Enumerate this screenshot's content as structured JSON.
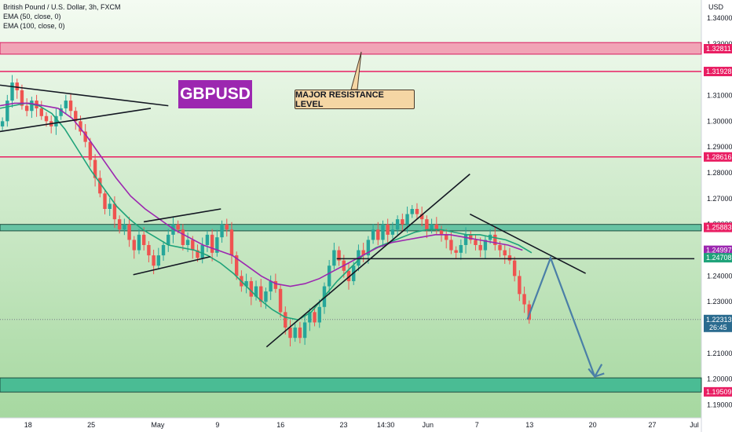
{
  "chart_data": {
    "type": "candlestick",
    "title": "British Pound / U.S. Dollar, 3h, FXCM",
    "indicators": [
      {
        "name": "EMA (50, close, 0)",
        "color": "#1fa37a"
      },
      {
        "name": "EMA (100, close, 0)",
        "color": "#9c27b0"
      }
    ],
    "symbol_badge": "GBPUSD",
    "annotation": "MAJOR RESISTANCE LEVEL",
    "y_axis": {
      "currency_label": "USD",
      "ylim": [
        1.185,
        1.347
      ],
      "ticks": [
        "1.34000",
        "1.33000",
        "1.32000",
        "1.31000",
        "1.30000",
        "1.29000",
        "1.28000",
        "1.27000",
        "1.26000",
        "1.25000",
        "1.24000",
        "1.23000",
        "1.22000",
        "1.21000",
        "1.20000",
        "1.19000"
      ]
    },
    "x_axis": {
      "ticks": [
        {
          "label": "18",
          "t": 0.04
        },
        {
          "label": "25",
          "t": 0.13
        },
        {
          "label": "May",
          "t": 0.225
        },
        {
          "label": "9",
          "t": 0.31
        },
        {
          "label": "16",
          "t": 0.4
        },
        {
          "label": "23",
          "t": 0.49
        },
        {
          "label": "14:30",
          "t": 0.55
        },
        {
          "label": "Jun",
          "t": 0.61
        },
        {
          "label": "7",
          "t": 0.68
        },
        {
          "label": "13",
          "t": 0.755
        },
        {
          "label": "20",
          "t": 0.845
        },
        {
          "label": "27",
          "t": 0.93
        },
        {
          "label": "Jul",
          "t": 0.99
        }
      ]
    },
    "price_labels": [
      {
        "value": "1.32811",
        "price": 1.32811,
        "kind": "red"
      },
      {
        "value": "1.31928",
        "price": 1.31928,
        "kind": "red"
      },
      {
        "value": "1.28616",
        "price": 1.28616,
        "kind": "red"
      },
      {
        "value": "1.25883",
        "price": 1.25883,
        "kind": "red"
      },
      {
        "value": "1.24997",
        "price": 1.24997,
        "kind": "purple"
      },
      {
        "value": "1.24708",
        "price": 1.24708,
        "kind": "green"
      },
      {
        "value": "1.22313",
        "price": 1.22313,
        "kind": "current"
      },
      {
        "value": "1.19509",
        "price": 1.19509,
        "kind": "red"
      }
    ],
    "countdown": "26:45",
    "zones": [
      {
        "from": 1.326,
        "to": 1.3305,
        "kind": "resistance"
      },
      {
        "from": 1.2575,
        "to": 1.26,
        "kind": "supply"
      },
      {
        "from": 1.195,
        "to": 1.2005,
        "kind": "demand"
      }
    ],
    "horizontal_levels": [
      1.31928,
      1.28616
    ],
    "close_series": [
      1.3,
      1.308,
      1.315,
      1.312,
      1.306,
      1.304,
      1.308,
      1.305,
      1.302,
      1.3,
      1.298,
      1.302,
      1.305,
      1.308,
      1.304,
      1.3,
      1.296,
      1.292,
      1.285,
      1.278,
      1.272,
      1.266,
      1.268,
      1.262,
      1.258,
      1.26,
      1.254,
      1.25,
      1.256,
      1.252,
      1.248,
      1.244,
      1.248,
      1.252,
      1.256,
      1.26,
      1.258,
      1.252,
      1.254,
      1.25,
      1.247,
      1.252,
      1.256,
      1.249,
      1.255,
      1.26,
      1.258,
      1.248,
      1.24,
      1.236,
      1.238,
      1.232,
      1.236,
      1.23,
      1.234,
      1.238,
      1.235,
      1.226,
      1.22,
      1.216,
      1.22,
      1.216,
      1.222,
      1.226,
      1.222,
      1.228,
      1.236,
      1.244,
      1.25,
      1.246,
      1.242,
      1.238,
      1.244,
      1.25,
      1.248,
      1.254,
      1.258,
      1.254,
      1.26,
      1.256,
      1.258,
      1.262,
      1.26,
      1.264,
      1.266,
      1.264,
      1.262,
      1.258,
      1.26,
      1.258,
      1.256,
      1.254,
      1.25,
      1.249,
      1.252,
      1.256,
      1.254,
      1.252,
      1.25,
      1.254,
      1.256,
      1.252,
      1.25,
      1.248,
      1.246,
      1.24,
      1.233,
      1.229,
      1.223
    ],
    "ema50_series": [
      1.305,
      1.306,
      1.307,
      1.306,
      1.303,
      1.297,
      1.289,
      1.281,
      1.274,
      1.267,
      1.262,
      1.258,
      1.255,
      1.252,
      1.251,
      1.25,
      1.248,
      1.245,
      1.241,
      1.236,
      1.231,
      1.227,
      1.224,
      1.223,
      1.226,
      1.232,
      1.238,
      1.243,
      1.248,
      1.251,
      1.253,
      1.255,
      1.257,
      1.258,
      1.258,
      1.257,
      1.256,
      1.256,
      1.255,
      1.254,
      1.252,
      1.249
    ],
    "ema100_series": [
      1.306,
      1.307,
      1.307,
      1.306,
      1.305,
      1.301,
      1.294,
      1.286,
      1.278,
      1.271,
      1.266,
      1.262,
      1.258,
      1.255,
      1.252,
      1.25,
      1.248,
      1.244,
      1.24,
      1.237,
      1.236,
      1.237,
      1.239,
      1.242,
      1.245,
      1.248,
      1.251,
      1.253,
      1.254,
      1.255,
      1.256,
      1.256,
      1.255,
      1.254,
      1.253,
      1.252,
      1.25
    ],
    "projection": [
      {
        "t": 0.752,
        "price": 1.2232
      },
      {
        "t": 0.785,
        "price": 1.247
      },
      {
        "t": 0.848,
        "price": 1.201
      },
      {
        "t": 0.858,
        "price": 1.2058
      }
    ],
    "trendlines": [
      {
        "t1": 0.0,
        "p1": 1.314,
        "t2": 0.24,
        "p2": 1.306
      },
      {
        "t1": 0.0,
        "p1": 1.296,
        "t2": 0.215,
        "p2": 1.305
      },
      {
        "t1": 0.205,
        "p1": 1.261,
        "t2": 0.315,
        "p2": 1.266
      },
      {
        "t1": 0.19,
        "p1": 1.2405,
        "t2": 0.3,
        "p2": 1.2475
      },
      {
        "t1": 0.38,
        "p1": 1.2125,
        "t2": 0.67,
        "p2": 1.2795
      },
      {
        "t1": 0.67,
        "p1": 1.264,
        "t2": 0.835,
        "p2": 1.241
      },
      {
        "t1": 0.48,
        "p1": 1.2467,
        "t2": 0.99,
        "p2": 1.2467
      }
    ]
  }
}
